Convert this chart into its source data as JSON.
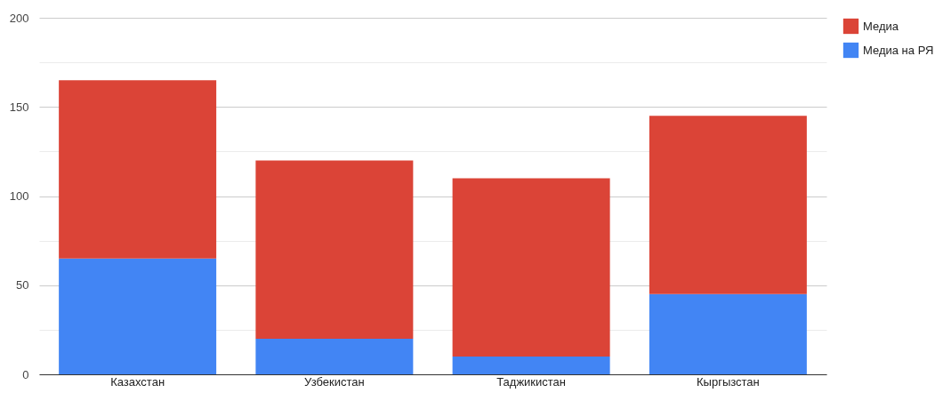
{
  "chart_data": {
    "type": "bar",
    "stacked": true,
    "categories": [
      "Казахстан",
      "Узбекистан",
      "Таджикистан",
      "Кыргызстан"
    ],
    "series": [
      {
        "name": "Медиа на РЯ",
        "color": "#4285f4",
        "values": [
          65,
          20,
          10,
          45
        ]
      },
      {
        "name": "Медиа",
        "color": "#db4437",
        "values": [
          100,
          100,
          100,
          100
        ]
      }
    ],
    "ylim": [
      0,
      200
    ],
    "yticks": [
      0,
      {
        "value": 25,
        "label": null
      },
      50,
      {
        "value": 75,
        "label": null
      },
      100,
      {
        "value": 125,
        "label": null
      },
      150,
      {
        "value": 175,
        "label": null
      },
      200
    ],
    "grid": true,
    "legend": "top right"
  }
}
